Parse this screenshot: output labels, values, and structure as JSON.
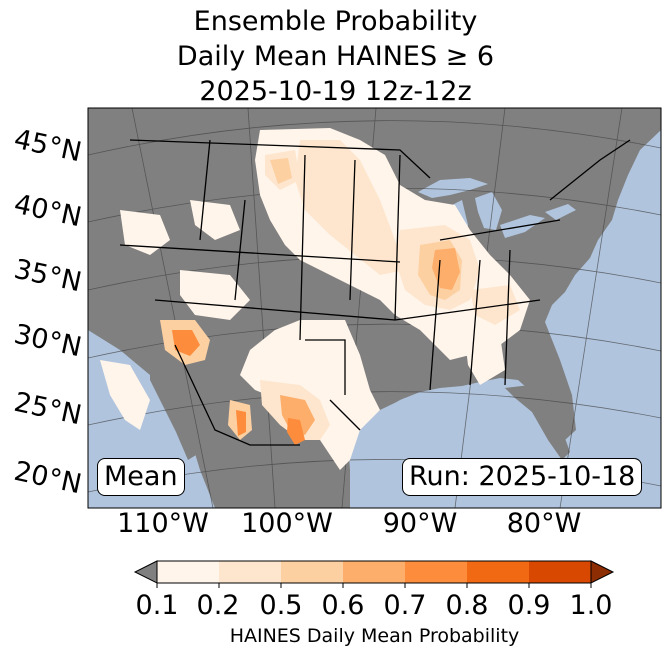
{
  "title": {
    "line1": "Ensemble Probability",
    "line2": "Daily Mean HAINES ≥ 6",
    "line3": "2025-10-19 12z-12z"
  },
  "map": {
    "latitude_labels": [
      "45°N",
      "40°N",
      "35°N",
      "30°N",
      "25°N",
      "20°N"
    ],
    "longitude_labels": [
      "110°W",
      "100°W",
      "90°W",
      "80°W"
    ],
    "ocean_color": "#b0c4de",
    "land_color": "#808080",
    "stat_label": "Mean",
    "run_label": "Run: 2025-10-18"
  },
  "colorbar": {
    "title": "HAINES Daily Mean Probability",
    "tick_labels": [
      "0.1",
      "0.2",
      "0.5",
      "0.6",
      "0.7",
      "0.8",
      "0.9",
      "1.0"
    ],
    "colors": [
      "#808080",
      "#fff5eb",
      "#fee6ce",
      "#fdd0a2",
      "#fdae6b",
      "#fd8d3c",
      "#f16913",
      "#d94801",
      "#8c2d04"
    ]
  }
}
